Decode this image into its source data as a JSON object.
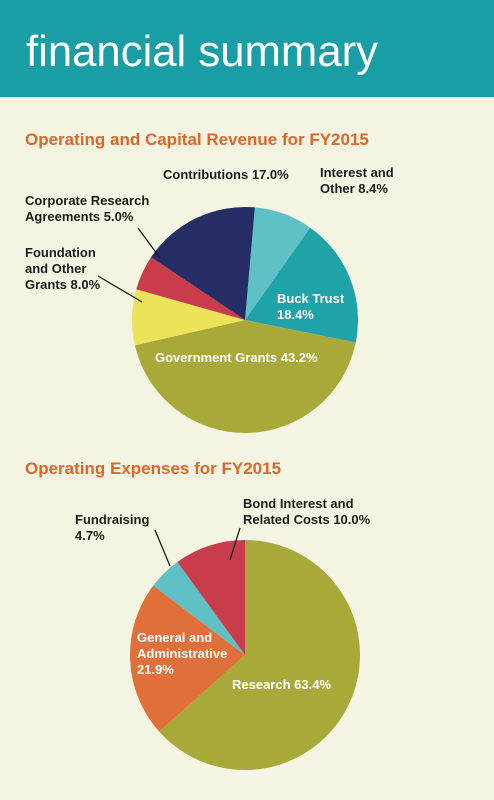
{
  "header": {
    "title": "financial summary"
  },
  "chart_data": [
    {
      "type": "pie",
      "title": "Operating and Capital Revenue for FY2015",
      "categories": [
        "Interest and Other",
        "Buck Trust",
        "Government Grants",
        "Foundation and Other Grants",
        "Corporate Research Agreements",
        "Contributions"
      ],
      "values": [
        8.4,
        18.4,
        43.2,
        8.0,
        5.0,
        17.0
      ],
      "value_labels": [
        "8.4%",
        "18.4%",
        "43.2%",
        "8.0%",
        "5.0%",
        "17.0%"
      ],
      "colors": [
        "#5fc0c6",
        "#1fa3a8",
        "#a9a93a",
        "#ece35a",
        "#c83c4c",
        "#262c64"
      ]
    },
    {
      "type": "pie",
      "title": "Operating Expenses for FY2015",
      "categories": [
        "Research",
        "General and Administrative",
        "Fundraising",
        "Bond Interest and Related Costs"
      ],
      "values": [
        63.4,
        21.9,
        4.7,
        10.0
      ],
      "value_labels": [
        "63.4%",
        "21.9%",
        "4.7%",
        "10.0%"
      ],
      "colors": [
        "#a9a93a",
        "#e0703a",
        "#5fc0c6",
        "#c83c4c"
      ]
    }
  ]
}
